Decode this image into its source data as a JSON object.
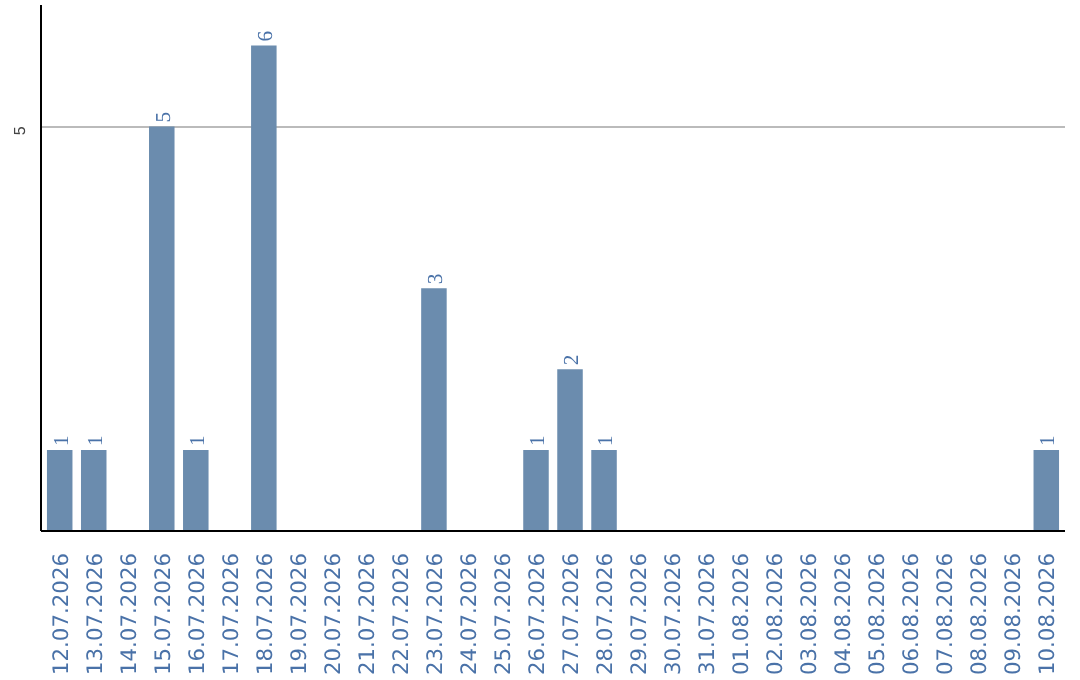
{
  "chart_data": {
    "type": "bar",
    "categories": [
      "12.07.2026",
      "13.07.2026",
      "14.07.2026",
      "15.07.2026",
      "16.07.2026",
      "17.07.2026",
      "18.07.2026",
      "19.07.2026",
      "20.07.2026",
      "21.07.2026",
      "22.07.2026",
      "23.07.2026",
      "24.07.2026",
      "25.07.2026",
      "26.07.2026",
      "27.07.2026",
      "28.07.2026",
      "29.07.2026",
      "30.07.2026",
      "31.07.2026",
      "01.08.2026",
      "02.08.2026",
      "03.08.2026",
      "04.08.2026",
      "05.08.2026",
      "06.08.2026",
      "07.08.2026",
      "08.08.2026",
      "09.08.2026",
      "10.08.2026"
    ],
    "values": [
      1,
      1,
      0,
      5,
      1,
      0,
      6,
      0,
      0,
      0,
      0,
      3,
      0,
      0,
      1,
      2,
      1,
      0,
      0,
      0,
      0,
      0,
      0,
      0,
      0,
      0,
      0,
      0,
      0,
      1
    ],
    "value_labels": [
      "1",
      "1",
      null,
      "5",
      "1",
      null,
      "6",
      null,
      null,
      null,
      null,
      "3",
      null,
      null,
      "1",
      "2",
      "1",
      null,
      null,
      null,
      null,
      null,
      null,
      null,
      null,
      null,
      null,
      null,
      null,
      "1"
    ],
    "color": "#6b8cae",
    "ylim": [
      0,
      6.5
    ],
    "yticks": [
      5
    ],
    "grid": "y"
  }
}
